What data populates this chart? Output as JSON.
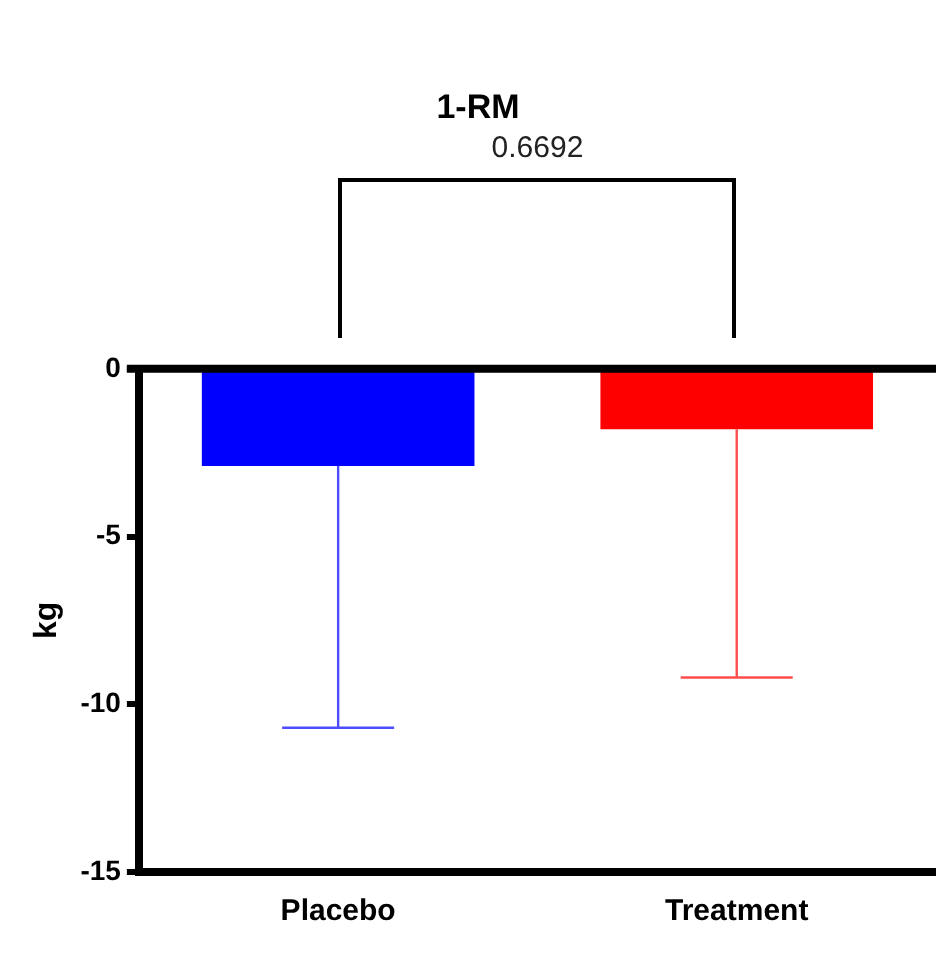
{
  "chart_data": {
    "type": "bar",
    "title": "1-RM",
    "ylabel": "kg",
    "categories": [
      "Placebo",
      "Treatment"
    ],
    "values": [
      -2.9,
      -1.8
    ],
    "colors": [
      "#0000ff",
      "#ff0000"
    ],
    "errors": [
      [
        -10.7,
        -2.9
      ],
      [
        -9.2,
        -1.8
      ]
    ],
    "ylim": [
      -15,
      0
    ],
    "yticks": [
      -15,
      -10,
      -5,
      0
    ],
    "ref_lines": [
      {
        "axis": "y",
        "value": 0,
        "color": "#000000"
      }
    ],
    "annotations": [
      "0.6692"
    ],
    "grid": false,
    "legend": false
  }
}
